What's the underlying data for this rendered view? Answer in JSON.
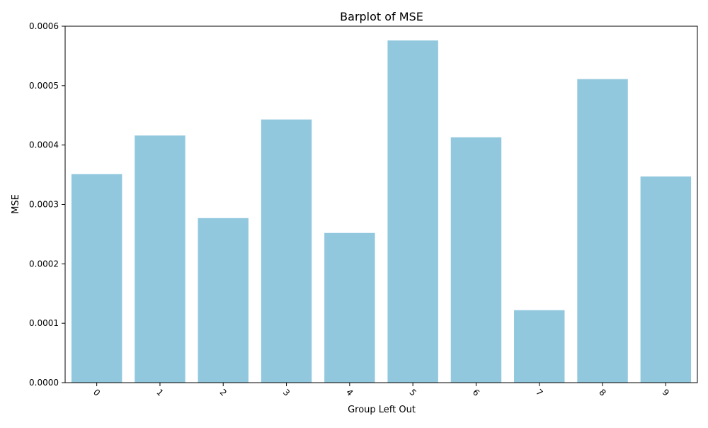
{
  "chart_data": {
    "type": "bar",
    "title": "Barplot of MSE",
    "xlabel": "Group Left Out",
    "ylabel": "MSE",
    "categories": [
      "0",
      "1",
      "2",
      "3",
      "4",
      "5",
      "6",
      "7",
      "8",
      "9"
    ],
    "values": [
      0.000351,
      0.000416,
      0.000277,
      0.000443,
      0.000252,
      0.000576,
      0.000413,
      0.000122,
      0.000511,
      0.000347
    ],
    "ylim": [
      0,
      0.0006
    ],
    "yticks": [
      "0.0000",
      "0.0001",
      "0.0002",
      "0.0003",
      "0.0004",
      "0.0005",
      "0.0006"
    ],
    "grid": false,
    "legend": "none",
    "bar_color": "#92c8de",
    "x_tick_rotation_deg": 45
  }
}
